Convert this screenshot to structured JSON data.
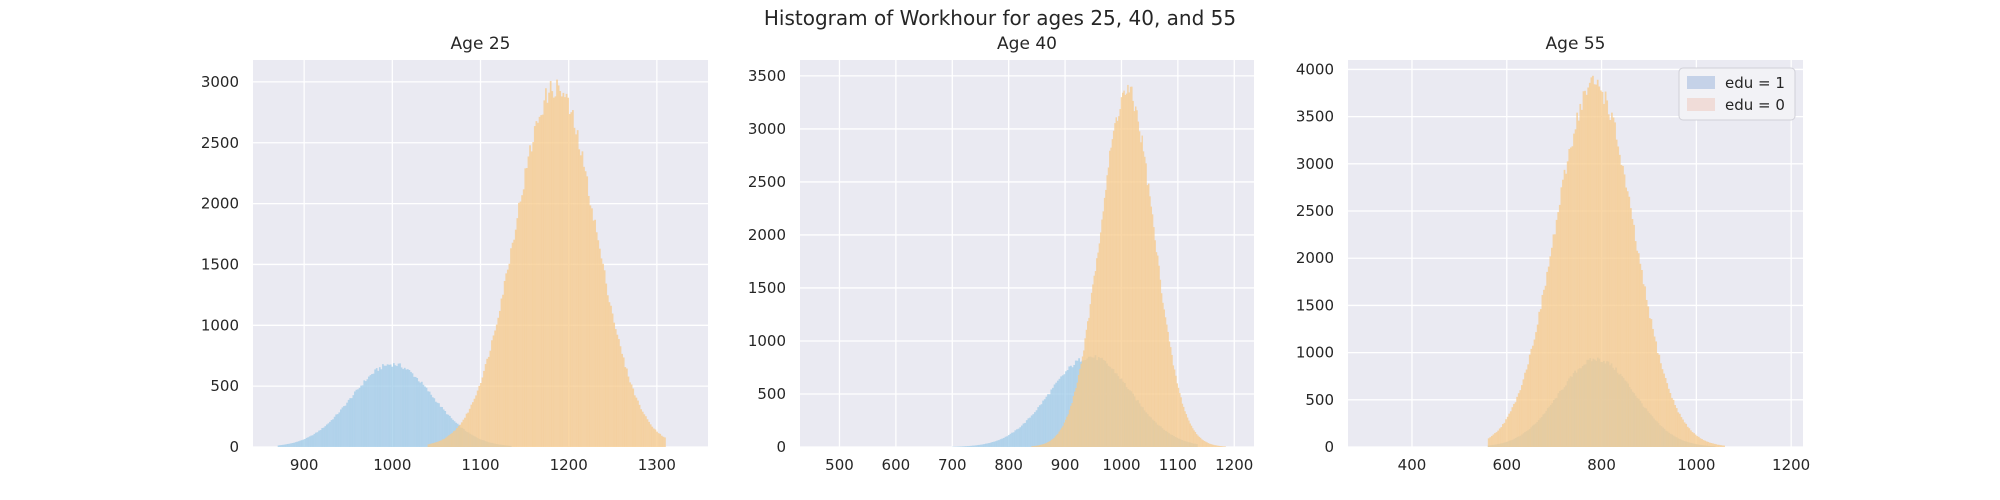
{
  "title": "Histogram of Workhour for ages 25, 40, and 55",
  "colors": {
    "background": "#ffffff",
    "axes_face": "#eaeaf2",
    "grid": "#ffffff",
    "edu1": "#9fcbe8",
    "edu0": "#f7c98a",
    "overlap": "#c9b98c",
    "legend_edu1": "#c5d2e8",
    "legend_edu0": "#f0dcd8"
  },
  "chart_data": [
    {
      "type": "bar",
      "title": "Age 25",
      "xlim": [
        842,
        1358
      ],
      "ylim": [
        0,
        3180
      ],
      "xticks": [
        900,
        1000,
        1100,
        1200,
        1300
      ],
      "yticks": [
        0,
        500,
        1000,
        1500,
        2000,
        2500,
        3000
      ],
      "grid": true,
      "legend": false,
      "series": [
        {
          "name": "edu = 1",
          "color": "edu1",
          "distribution": "normal",
          "mean": 1000,
          "sd": 46,
          "peak": 680,
          "range": [
            870,
            1135
          ]
        },
        {
          "name": "edu = 0",
          "color": "edu0",
          "distribution": "normal",
          "mean": 1185,
          "sd": 46,
          "peak": 2950,
          "range": [
            1040,
            1310
          ]
        }
      ]
    },
    {
      "type": "bar",
      "title": "Age 40",
      "xlim": [
        430,
        1235
      ],
      "ylim": [
        0,
        3650
      ],
      "xticks": [
        500,
        600,
        700,
        800,
        900,
        1000,
        1100,
        1200
      ],
      "yticks": [
        0,
        500,
        1000,
        1500,
        2000,
        2500,
        3000,
        3500
      ],
      "grid": true,
      "legend": false,
      "series": [
        {
          "name": "edu = 1",
          "color": "edu1",
          "distribution": "normal",
          "mean": 945,
          "sd": 72,
          "peak": 850,
          "range": [
            700,
            1135
          ]
        },
        {
          "name": "edu = 0",
          "color": "edu0",
          "distribution": "normal",
          "mean": 1010,
          "sd": 48,
          "peak": 3350,
          "range": [
            840,
            1185
          ]
        }
      ]
    },
    {
      "type": "bar",
      "title": "Age 55",
      "xlim": [
        265,
        1225
      ],
      "ylim": [
        0,
        4100
      ],
      "xticks": [
        400,
        600,
        800,
        1000,
        1200
      ],
      "yticks": [
        0,
        500,
        1000,
        1500,
        2000,
        2500,
        3000,
        3500,
        4000
      ],
      "grid": true,
      "legend": true,
      "legend_loc": "upper right",
      "series": [
        {
          "name": "edu = 1",
          "color": "edu1",
          "legend_color": "legend_edu1",
          "distribution": "normal",
          "mean": 790,
          "sd": 80,
          "peak": 930,
          "range": [
            560,
            1040
          ]
        },
        {
          "name": "edu = 0",
          "color": "edu0",
          "legend_color": "legend_edu0",
          "distribution": "normal",
          "mean": 785,
          "sd": 82,
          "peak": 3850,
          "range": [
            560,
            1060
          ]
        }
      ]
    }
  ]
}
